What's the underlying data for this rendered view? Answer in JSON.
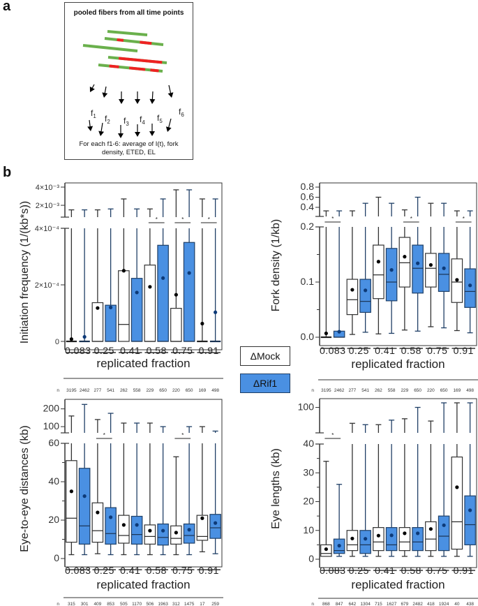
{
  "panel_labels": {
    "a": "a",
    "b": "b"
  },
  "schematic": {
    "title": "pooled fibers from all time points",
    "fraction_labels": [
      "f1",
      "f2",
      "f3",
      "f4",
      "f5",
      "f6"
    ],
    "fraction_symbol": "f",
    "fraction_indices": [
      "1",
      "2",
      "3",
      "4",
      "5",
      "6"
    ],
    "caption_line1": "For each f1-6: average of I(t), fork",
    "caption_line2": "density, ETED, EL",
    "colors": {
      "fiber": "#6ab04c",
      "label": "#ee2222"
    }
  },
  "legend": {
    "mock": "ΔMock",
    "rif1": "ΔRif1",
    "mock_color": "#ffffff",
    "rif1_color": "#4a90e2"
  },
  "chart_data": [
    {
      "id": "initiation",
      "type": "box",
      "ylabel": "Initiation frequency (1/(kb*s))",
      "xlabel": "replicated fraction",
      "categories": [
        "0.083",
        "0.25",
        "0.41",
        "0.58",
        "0.75",
        "0.91"
      ],
      "series_names": [
        "ΔMock",
        "ΔRif1"
      ],
      "axis": {
        "lower": {
          "range": [
            0,
            0.0004
          ],
          "ticks": [
            0,
            0.0002,
            0.0004
          ],
          "tick_labels": [
            "0",
            "2×10⁻⁴",
            "4×10⁻⁴"
          ]
        },
        "upper": {
          "range": [
            0.0007,
            0.004
          ],
          "ticks": [
            0.002,
            0.004
          ],
          "tick_labels": [
            "2×10⁻³",
            "4×10⁻³"
          ]
        }
      },
      "n_label": "n",
      "n": [
        3195,
        2462,
        277,
        541,
        262,
        558,
        229,
        650,
        220,
        650,
        169,
        498
      ],
      "boxes": [
        {
          "q1": 0,
          "median": 0,
          "q3": 0,
          "mean": 8e-06,
          "wmin": 0,
          "wmax": 0.0015
        },
        {
          "q1": 0,
          "median": 0,
          "q3": 0,
          "mean": 1.6e-05,
          "wmin": 0,
          "wmax": 0.0015
        },
        {
          "q1": 0,
          "median": 0,
          "q3": 0.000137,
          "mean": 0.000118,
          "wmin": 0,
          "wmax": 0.0015
        },
        {
          "q1": 0,
          "median": 0,
          "q3": 0.000128,
          "mean": 0.00012,
          "wmin": 0,
          "wmax": 0.0016
        },
        {
          "q1": 0,
          "median": 6e-05,
          "q3": 0.00025,
          "mean": 0.00025,
          "wmin": 0,
          "wmax": 0.0027
        },
        {
          "q1": 0,
          "median": 0,
          "q3": 0.000223,
          "mean": 0.000173,
          "wmin": 0,
          "wmax": 0.0016
        },
        {
          "q1": 0,
          "median": 0,
          "q3": 0.00027,
          "mean": 0.000193,
          "wmin": 0,
          "wmax": 0.0016
        },
        {
          "q1": 0,
          "median": 0,
          "q3": 0.00034,
          "mean": 0.000224,
          "wmin": 0,
          "wmax": 0.0027
        },
        {
          "q1": 0,
          "median": 0,
          "q3": 0.000117,
          "mean": 0.000165,
          "wmin": 0,
          "wmax": 0.0037
        },
        {
          "q1": 0,
          "median": 0,
          "q3": 0.00035,
          "mean": 0.000242,
          "wmin": 0,
          "wmax": 0.0037
        },
        {
          "q1": 0,
          "median": 0,
          "q3": 0,
          "mean": 6.3e-05,
          "wmin": 0,
          "wmax": 0.0027
        },
        {
          "q1": 0,
          "median": 0,
          "q3": 0,
          "mean": 0.000103,
          "wmin": 0,
          "wmax": 0.0027
        }
      ],
      "significance": [
        {
          "pair": 3,
          "label": "*"
        },
        {
          "pair": 4,
          "label": "*"
        },
        {
          "pair": 5,
          "label": "*"
        }
      ]
    },
    {
      "id": "fork_density",
      "type": "box",
      "ylabel": "Fork density (1/kb)",
      "xlabel": "replicated fraction",
      "categories": [
        "0.083",
        "0.25",
        "0.41",
        "0.58",
        "0.75",
        "0.91"
      ],
      "series_names": [
        "ΔMock",
        "ΔRif1"
      ],
      "axis": {
        "lower": {
          "range": [
            0,
            0.2
          ],
          "ticks": [
            0,
            0.05,
            0.1,
            0.15,
            0.2
          ],
          "tick_labels": [
            "0.0",
            "",
            "0.1",
            "",
            "0.2"
          ]
        },
        "upper": {
          "range": [
            0.22,
            0.8
          ],
          "ticks": [
            0.4,
            0.6,
            0.8
          ],
          "tick_labels": [
            "0.4",
            "0.6",
            "0.8"
          ]
        }
      },
      "n_label": "n",
      "n": [
        3195,
        2462,
        277,
        541,
        262,
        558,
        229,
        650,
        220,
        650,
        169,
        498
      ],
      "boxes": [
        {
          "q1": 0,
          "median": 0,
          "q3": 0,
          "mean": 0.007,
          "wmin": 0,
          "wmax": 0.33
        },
        {
          "q1": 0,
          "median": 0,
          "q3": 0.011,
          "mean": 0.01,
          "wmin": 0,
          "wmax": 0.33
        },
        {
          "q1": 0.041,
          "median": 0.068,
          "q3": 0.105,
          "mean": 0.086,
          "wmin": 0.005,
          "wmax": 0.33
        },
        {
          "q1": 0.045,
          "median": 0.065,
          "q3": 0.105,
          "mean": 0.085,
          "wmin": 0.009,
          "wmax": 0.48
        },
        {
          "q1": 0.07,
          "median": 0.113,
          "q3": 0.167,
          "mean": 0.137,
          "wmin": 0.006,
          "wmax": 0.6
        },
        {
          "q1": 0.066,
          "median": 0.1,
          "q3": 0.161,
          "mean": 0.122,
          "wmin": 0.007,
          "wmax": 0.48
        },
        {
          "q1": 0.091,
          "median": 0.135,
          "q3": 0.181,
          "mean": 0.146,
          "wmin": 0.013,
          "wmax": 0.35
        },
        {
          "q1": 0.08,
          "median": 0.125,
          "q3": 0.167,
          "mean": 0.134,
          "wmin": 0.011,
          "wmax": 0.6
        },
        {
          "q1": 0.091,
          "median": 0.125,
          "q3": 0.152,
          "mean": 0.131,
          "wmin": 0.019,
          "wmax": 0.48
        },
        {
          "q1": 0.083,
          "median": 0.114,
          "q3": 0.152,
          "mean": 0.125,
          "wmin": 0.017,
          "wmax": 0.48
        },
        {
          "q1": 0.063,
          "median": 0.1,
          "q3": 0.142,
          "mean": 0.104,
          "wmin": 0.012,
          "wmax": 0.33
        },
        {
          "q1": 0.054,
          "median": 0.083,
          "q3": 0.124,
          "mean": 0.094,
          "wmin": 0.008,
          "wmax": 0.33
        }
      ],
      "significance": [
        {
          "pair": 0,
          "label": "*"
        },
        {
          "pair": 3,
          "label": "*"
        },
        {
          "pair": 5,
          "label": "*"
        }
      ]
    },
    {
      "id": "eted",
      "type": "box",
      "ylabel": "Eye-to-eye distances (kb)",
      "xlabel": "replicated fraction",
      "categories": [
        "0.083",
        "0.25",
        "0.41",
        "0.58",
        "0.75",
        "0.91"
      ],
      "series_names": [
        "ΔMock",
        "ΔRif1"
      ],
      "axis": {
        "lower": {
          "range": [
            0,
            60
          ],
          "ticks": [
            0,
            10,
            20,
            30,
            40,
            50,
            60
          ],
          "tick_labels": [
            "0",
            "",
            "20",
            "",
            "40",
            "",
            "60"
          ]
        },
        "upper": {
          "range": [
            65,
            230
          ],
          "ticks": [
            100,
            200
          ],
          "tick_labels": [
            "100",
            "200"
          ]
        }
      },
      "n_label": "n",
      "n": [
        315,
        301,
        409,
        853,
        505,
        1170,
        506,
        1963,
        312,
        1475,
        17,
        259
      ],
      "boxes": [
        {
          "q1": 8.5,
          "median": 21,
          "q3": 51,
          "mean": 35,
          "wmin": 2,
          "wmax": 160
        },
        {
          "q1": 7.5,
          "median": 17,
          "q3": 47,
          "mean": 32.5,
          "wmin": 2,
          "wmax": 225
        },
        {
          "q1": 8.5,
          "median": 14.5,
          "q3": 29,
          "mean": 24,
          "wmin": 2.5,
          "wmax": 140
        },
        {
          "q1": 7.5,
          "median": 13,
          "q3": 26.5,
          "mean": 21.5,
          "wmin": 2,
          "wmax": 175
        },
        {
          "q1": 8,
          "median": 12,
          "q3": 22.5,
          "mean": 17.5,
          "wmin": 2,
          "wmax": 120
        },
        {
          "q1": 7.5,
          "median": 12.5,
          "q3": 22,
          "mean": 17.5,
          "wmin": 2,
          "wmax": 120
        },
        {
          "q1": 7.5,
          "median": 11.5,
          "q3": 17.5,
          "mean": 14.5,
          "wmin": 2,
          "wmax": 120
        },
        {
          "q1": 7,
          "median": 11,
          "q3": 18,
          "mean": 14.5,
          "wmin": 2,
          "wmax": 100
        },
        {
          "q1": 7.5,
          "median": 10.5,
          "q3": 17,
          "mean": 13.5,
          "wmin": 2,
          "wmax": 53
        },
        {
          "q1": 8,
          "median": 12,
          "q3": 18,
          "mean": 15,
          "wmin": 2,
          "wmax": 100
        },
        {
          "q1": 9.5,
          "median": 11.5,
          "q3": 22.5,
          "mean": 21,
          "wmin": 3.5,
          "wmax": 100
        },
        {
          "q1": 10.5,
          "median": 16,
          "q3": 23,
          "mean": 18.5,
          "wmin": 2.5,
          "wmax": 75
        }
      ],
      "significance": [
        {
          "pair": 1,
          "label": "*"
        },
        {
          "pair": 4,
          "label": "*"
        }
      ]
    },
    {
      "id": "eye_lengths",
      "type": "box",
      "ylabel": "Eye lengths (kb)",
      "xlabel": "replicated fraction",
      "categories": [
        "0.083",
        "0.25",
        "0.41",
        "0.58",
        "0.75",
        "0.91"
      ],
      "series_names": [
        "ΔMock",
        "ΔRif1"
      ],
      "axis": {
        "lower": {
          "range": [
            0,
            40
          ],
          "ticks": [
            0,
            5,
            10,
            15,
            20,
            25,
            30,
            35,
            40
          ],
          "tick_labels": [
            "0",
            "",
            "10",
            "",
            "20",
            "",
            "30",
            "",
            "40"
          ]
        },
        "upper": {
          "range": [
            44,
            110
          ],
          "ticks": [
            100
          ],
          "tick_labels": [
            "100"
          ]
        }
      },
      "n_label": "n",
      "n": [
        868,
        847,
        642,
        1304,
        715,
        1627,
        679,
        2482,
        418,
        1924,
        40,
        438
      ],
      "boxes": [
        {
          "q1": 1,
          "median": 2,
          "q3": 5,
          "mean": 3.5,
          "wmin": 1,
          "wmax": 34
        },
        {
          "q1": 2,
          "median": 3,
          "q3": 7,
          "mean": 4.7,
          "wmin": 1,
          "wmax": 26
        },
        {
          "q1": 3,
          "median": 5,
          "q3": 10,
          "mean": 7.2,
          "wmin": 1,
          "wmax": 65
        },
        {
          "q1": 2,
          "median": 5,
          "q3": 10,
          "mean": 7.1,
          "wmin": 1,
          "wmax": 62
        },
        {
          "q1": 3,
          "median": 6,
          "q3": 11,
          "mean": 8.2,
          "wmin": 1,
          "wmax": 62
        },
        {
          "q1": 3,
          "median": 5,
          "q3": 11,
          "mean": 8.3,
          "wmin": 1,
          "wmax": 72
        },
        {
          "q1": 3,
          "median": 6,
          "q3": 11,
          "mean": 9,
          "wmin": 1,
          "wmax": 75
        },
        {
          "q1": 3,
          "median": 6,
          "q3": 11,
          "mean": 9,
          "wmin": 1,
          "wmax": 100
        },
        {
          "q1": 3,
          "median": 7,
          "q3": 13,
          "mean": 10.5,
          "wmin": 1,
          "wmax": 70
        },
        {
          "q1": 3,
          "median": 8,
          "q3": 15,
          "mean": 11.8,
          "wmin": 1,
          "wmax": 130
        },
        {
          "q1": 3.5,
          "median": 13,
          "q3": 35.5,
          "mean": 25,
          "wmin": 1,
          "wmax": 110
        },
        {
          "q1": 5,
          "median": 12,
          "q3": 22,
          "mean": 17,
          "wmin": 1,
          "wmax": 110
        }
      ],
      "significance": [
        {
          "pair": 0,
          "label": "*"
        }
      ]
    }
  ]
}
